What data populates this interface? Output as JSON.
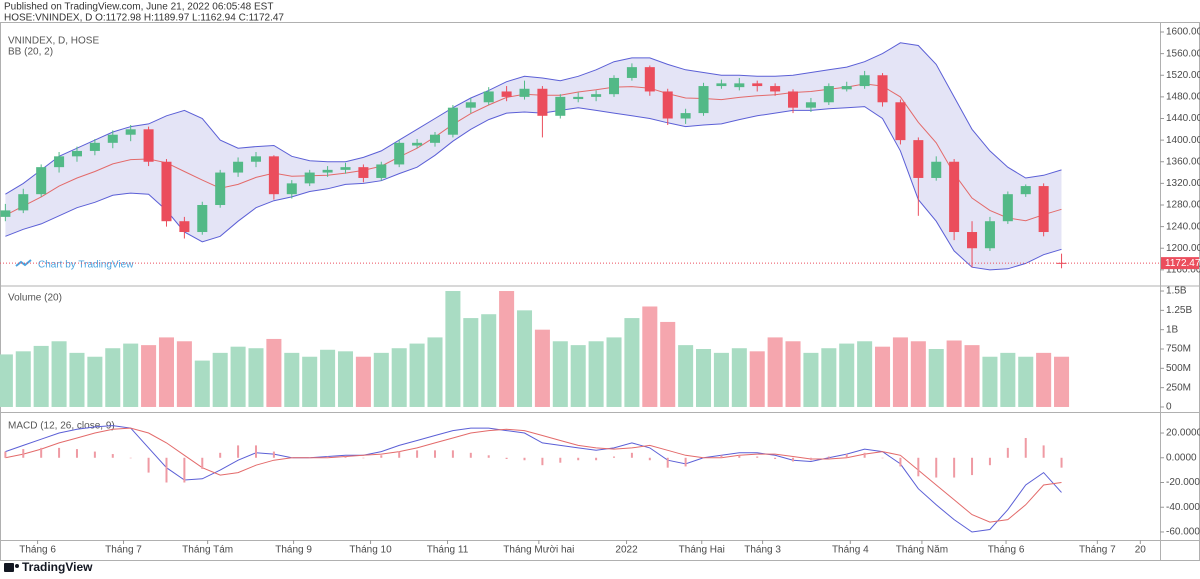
{
  "header": {
    "published": "Published on TradingView.com, June 21, 2022 06:05:48 EST",
    "symbol_line": "HOSE:VNINDEX, D O:1172.98 H:1189.97 L:1162.94 C:1172.47"
  },
  "watermark": "Chart by TradingView",
  "footer": "TradingView",
  "chart_data": [
    {
      "type": "candlestick",
      "title": "VNINDEX, D, HOSE",
      "indicator": "BB (20, 2)",
      "up_color": "#53b987",
      "down_color": "#eb4d5c",
      "open": [
        1258,
        1270,
        1300,
        1350,
        1370,
        1380,
        1395,
        1410,
        1420,
        1360,
        1250,
        1230,
        1280,
        1340,
        1360,
        1370,
        1300,
        1320,
        1340,
        1345,
        1350,
        1330,
        1355,
        1390,
        1395,
        1410,
        1460,
        1470,
        1490,
        1480,
        1495,
        1445,
        1476,
        1480,
        1485,
        1515,
        1535,
        1490,
        1440,
        1450,
        1500,
        1498,
        1505,
        1500,
        1490,
        1460,
        1470,
        1494,
        1500,
        1520,
        1470,
        1400,
        1330,
        1360,
        1230,
        1200,
        1250,
        1300,
        1315,
        1172.98
      ],
      "high": [
        1282,
        1310,
        1355,
        1378,
        1388,
        1402,
        1418,
        1428,
        1425,
        1365,
        1258,
        1286,
        1345,
        1368,
        1378,
        1372,
        1326,
        1345,
        1352,
        1358,
        1355,
        1360,
        1400,
        1402,
        1415,
        1465,
        1478,
        1498,
        1500,
        1510,
        1500,
        1485,
        1488,
        1492,
        1520,
        1542,
        1538,
        1495,
        1458,
        1506,
        1512,
        1515,
        1510,
        1505,
        1494,
        1478,
        1505,
        1508,
        1528,
        1524,
        1475,
        1405,
        1370,
        1365,
        1250,
        1258,
        1305,
        1318,
        1320,
        1189.97
      ],
      "low": [
        1250,
        1265,
        1295,
        1340,
        1360,
        1372,
        1385,
        1398,
        1352,
        1240,
        1218,
        1225,
        1275,
        1332,
        1350,
        1290,
        1292,
        1315,
        1332,
        1338,
        1322,
        1325,
        1350,
        1385,
        1388,
        1405,
        1450,
        1465,
        1472,
        1475,
        1405,
        1440,
        1470,
        1472,
        1480,
        1510,
        1482,
        1428,
        1430,
        1445,
        1495,
        1492,
        1490,
        1482,
        1450,
        1452,
        1465,
        1490,
        1495,
        1462,
        1392,
        1260,
        1325,
        1215,
        1165,
        1195,
        1245,
        1295,
        1222,
        1162.94
      ],
      "close": [
        1270,
        1300,
        1350,
        1370,
        1380,
        1395,
        1410,
        1420,
        1360,
        1250,
        1230,
        1280,
        1340,
        1360,
        1370,
        1300,
        1320,
        1340,
        1345,
        1350,
        1330,
        1355,
        1395,
        1395,
        1410,
        1460,
        1470,
        1490,
        1480,
        1495,
        1445,
        1480,
        1480,
        1485,
        1515,
        1535,
        1490,
        1440,
        1450,
        1500,
        1505,
        1505,
        1500,
        1490,
        1460,
        1470,
        1500,
        1500,
        1520,
        1470,
        1400,
        1330,
        1360,
        1230,
        1200,
        1250,
        1300,
        1315,
        1230,
        1172.47
      ],
      "bands": {
        "line_color": "#5b5fd6",
        "basis_color": "#e36a6a",
        "fill": "#e4e4f6",
        "upper": [
          1300,
          1320,
          1345,
          1370,
          1385,
          1400,
          1415,
          1425,
          1430,
          1445,
          1455,
          1440,
          1400,
          1385,
          1388,
          1390,
          1370,
          1362,
          1360,
          1360,
          1368,
          1380,
          1400,
          1420,
          1440,
          1460,
          1478,
          1492,
          1508,
          1518,
          1515,
          1510,
          1518,
          1530,
          1545,
          1552,
          1552,
          1540,
          1530,
          1525,
          1520,
          1520,
          1518,
          1518,
          1520,
          1525,
          1530,
          1535,
          1545,
          1560,
          1580,
          1575,
          1540,
          1480,
          1420,
          1380,
          1350,
          1330,
          1335,
          1345
        ],
        "basis": [
          1261,
          1278,
          1295,
          1315,
          1330,
          1342,
          1356,
          1364,
          1365,
          1358,
          1342,
          1326,
          1311,
          1318,
          1331,
          1339,
          1333,
          1334,
          1335,
          1339,
          1344,
          1352,
          1369,
          1385,
          1406,
          1429,
          1449,
          1465,
          1479,
          1485,
          1483,
          1483,
          1489,
          1493,
          1498,
          1499,
          1496,
          1486,
          1478,
          1477,
          1475,
          1479,
          1482,
          1484,
          1488,
          1490,
          1494,
          1498,
          1504,
          1500,
          1480,
          1433,
          1395,
          1338,
          1293,
          1270,
          1256,
          1251,
          1262,
          1272
        ],
        "lower": [
          1222,
          1235,
          1245,
          1260,
          1275,
          1285,
          1298,
          1302,
          1300,
          1270,
          1230,
          1212,
          1222,
          1250,
          1275,
          1288,
          1295,
          1305,
          1310,
          1318,
          1320,
          1325,
          1338,
          1350,
          1372,
          1398,
          1420,
          1438,
          1450,
          1452,
          1450,
          1455,
          1460,
          1455,
          1450,
          1445,
          1440,
          1432,
          1425,
          1428,
          1430,
          1438,
          1445,
          1450,
          1455,
          1455,
          1458,
          1460,
          1462,
          1440,
          1380,
          1290,
          1250,
          1195,
          1165,
          1160,
          1162,
          1172,
          1188,
          1198
        ]
      },
      "ylim": [
        1132,
        1618.5
      ],
      "yticks": [
        {
          "value": 1600,
          "label": "1600.00"
        },
        {
          "value": 1560,
          "label": "1560.00"
        },
        {
          "value": 1520,
          "label": "1520.00"
        },
        {
          "value": 1480,
          "label": "1480.00"
        },
        {
          "value": 1440,
          "label": "1440.00"
        },
        {
          "value": 1400,
          "label": "1400.00"
        },
        {
          "value": 1360,
          "label": "1360.00"
        },
        {
          "value": 1320,
          "label": "1320.00"
        },
        {
          "value": 1280,
          "label": "1280.00"
        },
        {
          "value": 1240,
          "label": "1240.00"
        },
        {
          "value": 1200,
          "label": "1200.00"
        },
        {
          "value": 1160,
          "label": "1160.00"
        }
      ],
      "last_price_color": "#eb4d5c",
      "xlim": [
        -0.3,
        64.5
      ],
      "xticks": [
        {
          "value": 1.8,
          "label": "Tháng 6"
        },
        {
          "value": 6.6,
          "label": "Tháng 7"
        },
        {
          "value": 11.3,
          "label": "Tháng Tám"
        },
        {
          "value": 16.1,
          "label": "Tháng 9"
        },
        {
          "value": 20.4,
          "label": "Tháng 10"
        },
        {
          "value": 24.7,
          "label": "Tháng 11"
        },
        {
          "value": 29.8,
          "label": "Tháng Mười hai"
        },
        {
          "value": 34.7,
          "label": "2022"
        },
        {
          "value": 38.9,
          "label": "Tháng Hai"
        },
        {
          "value": 42.3,
          "label": "Tháng 3"
        },
        {
          "value": 47.2,
          "label": "Tháng 4"
        },
        {
          "value": 51.2,
          "label": "Tháng Năm"
        },
        {
          "value": 55.9,
          "label": "Tháng 6"
        },
        {
          "value": 61.0,
          "label": "Tháng 7"
        },
        {
          "value": 63.4,
          "label": "20"
        }
      ],
      "grid": false
    },
    {
      "type": "bar",
      "title": "Volume (20)",
      "up_color": "#a9dcc3",
      "down_color": "#f5a6ae",
      "values": [
        680000000,
        720000000,
        790000000,
        850000000,
        700000000,
        650000000,
        760000000,
        820000000,
        800000000,
        900000000,
        850000000,
        600000000,
        700000000,
        780000000,
        760000000,
        880000000,
        700000000,
        650000000,
        740000000,
        720000000,
        650000000,
        700000000,
        760000000,
        820000000,
        900000000,
        1500000000,
        1150000000,
        1200000000,
        1500000000,
        1250000000,
        1000000000,
        850000000,
        800000000,
        850000000,
        900000000,
        1150000000,
        1300000000,
        1100000000,
        800000000,
        750000000,
        700000000,
        760000000,
        720000000,
        900000000,
        850000000,
        700000000,
        760000000,
        820000000,
        850000000,
        780000000,
        900000000,
        850000000,
        750000000,
        860000000,
        800000000,
        650000000,
        700000000,
        650000000,
        700000000,
        650000000
      ],
      "ylim": [
        -65000000,
        1552000000
      ],
      "yticks": [
        {
          "value": 1500000000,
          "label": "1.5B"
        },
        {
          "value": 1250000000,
          "label": "1.25B"
        },
        {
          "value": 1000000000,
          "label": "1B"
        },
        {
          "value": 750000000,
          "label": "750M"
        },
        {
          "value": 500000000,
          "label": "500M"
        },
        {
          "value": 250000000,
          "label": "250M"
        },
        0
      ],
      "grid": false
    },
    {
      "type": "line",
      "title": "MACD (12, 26, close, 9)",
      "series": [
        {
          "color": "#5b5fd6",
          "values": [
            5,
            10,
            15,
            20,
            23,
            25,
            26,
            24,
            8,
            -8,
            -18,
            -17,
            -10,
            -2,
            4,
            3,
            0,
            0,
            1,
            2,
            2,
            5,
            10,
            14,
            18,
            22,
            24,
            24,
            22,
            20,
            12,
            10,
            8,
            6,
            8,
            12,
            8,
            -2,
            -5,
            0,
            2,
            4,
            4,
            2,
            -2,
            -3,
            0,
            3,
            7,
            5,
            -5,
            -25,
            -38,
            -50,
            -60,
            -58,
            -42,
            -22,
            -12,
            -28
          ]
        },
        {
          "color": "#e36a6a",
          "values": [
            0,
            3,
            7,
            12,
            16,
            20,
            23,
            24,
            20,
            12,
            2,
            -8,
            -14,
            -12,
            -6,
            -2,
            0,
            0,
            0,
            1,
            2,
            3,
            5,
            8,
            12,
            16,
            20,
            22,
            23,
            22,
            18,
            14,
            10,
            8,
            7,
            8,
            10,
            6,
            2,
            0,
            0,
            2,
            3,
            3,
            1,
            -1,
            -1,
            0,
            3,
            5,
            2,
            -10,
            -22,
            -34,
            -46,
            -52,
            -50,
            -38,
            -22,
            -20
          ]
        },
        {
          "color": "#ef9aa3",
          "style": "histogram",
          "values": [
            5,
            7,
            8,
            8,
            7,
            5,
            3,
            0,
            -12,
            -20,
            -20,
            -9,
            4,
            10,
            10,
            5,
            0,
            0,
            1,
            1,
            0,
            2,
            5,
            6,
            6,
            6,
            4,
            2,
            -1,
            -2,
            -6,
            -4,
            -2,
            -2,
            1,
            4,
            -2,
            -8,
            -7,
            0,
            2,
            2,
            1,
            -1,
            -3,
            -2,
            1,
            3,
            4,
            0,
            -7,
            -15,
            -16,
            -16,
            -14,
            -6,
            8,
            16,
            10,
            -8
          ]
        }
      ],
      "ylim": [
        -66.5,
        36.2
      ],
      "yticks": [
        {
          "value": 20,
          "label": "20.0000"
        },
        {
          "value": 0,
          "label": "0.0000"
        },
        {
          "value": -20,
          "label": "-20.0000"
        },
        {
          "value": -40,
          "label": "-40.0000"
        },
        {
          "value": -60,
          "label": "-60.0000"
        }
      ],
      "grid": false
    }
  ]
}
